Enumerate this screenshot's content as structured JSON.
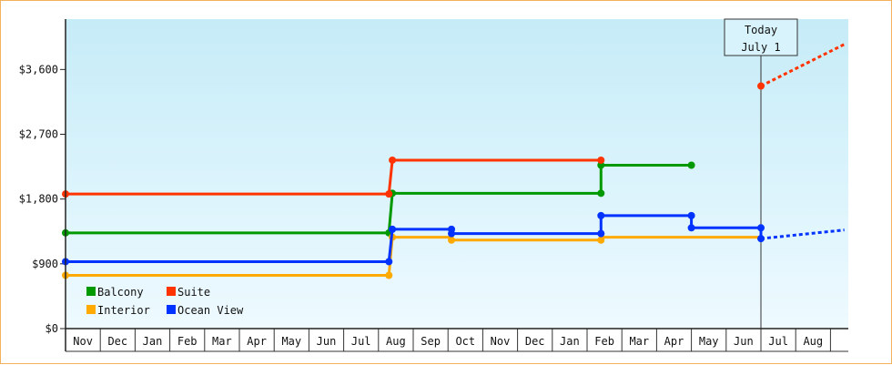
{
  "chart_data": {
    "type": "line",
    "title": "",
    "xlabel": "",
    "ylabel": "",
    "ylim": [
      0,
      4300
    ],
    "yticks": [
      0,
      900,
      1800,
      2700,
      3600
    ],
    "ytick_labels": [
      "$0",
      "$900",
      "$1,800",
      "$2,700",
      "$3,600"
    ],
    "month_labels": [
      "Nov",
      "Dec",
      "Jan",
      "Feb",
      "Mar",
      "Apr",
      "May",
      "Jun",
      "Jul",
      "Aug",
      "Sep",
      "Oct",
      "Nov",
      "Dec",
      "Jan",
      "Feb",
      "Mar",
      "Apr",
      "May",
      "Jun",
      "Jul",
      "Aug"
    ],
    "x_unit": "month index (0 = first Nov)",
    "grid": false,
    "background": "light blue gradient",
    "legend_position": "bottom-left",
    "today_marker": {
      "x": 20.0,
      "label_line1": "Today",
      "label_line2": "July 1"
    },
    "series": [
      {
        "name": "Balcony",
        "color": "#009900",
        "points": [
          [
            0,
            1330
          ],
          [
            9.3,
            1330
          ],
          [
            9.4,
            1880
          ],
          [
            15.4,
            1880
          ],
          [
            15.4,
            2270
          ],
          [
            18.0,
            2270
          ]
        ],
        "markers": [
          [
            0,
            1330
          ],
          [
            9.3,
            1330
          ],
          [
            9.4,
            1880
          ],
          [
            15.4,
            1880
          ],
          [
            15.4,
            2270
          ],
          [
            18.0,
            2270
          ]
        ],
        "forecast": []
      },
      {
        "name": "Suite",
        "color": "#ff3300",
        "points": [
          [
            0,
            1870
          ],
          [
            9.3,
            1870
          ],
          [
            9.4,
            2340
          ],
          [
            15.4,
            2340
          ]
        ],
        "markers": [
          [
            0,
            1870
          ],
          [
            9.3,
            1870
          ],
          [
            9.4,
            2340
          ],
          [
            15.4,
            2340
          ]
        ],
        "forecast_markers": [
          [
            20.0,
            3370
          ]
        ],
        "forecast": [
          [
            20.0,
            3370
          ],
          [
            22.4,
            3950
          ]
        ]
      },
      {
        "name": "Interior",
        "color": "#ffaa00",
        "points": [
          [
            0,
            740
          ],
          [
            9.3,
            740
          ],
          [
            9.4,
            1270
          ],
          [
            11.1,
            1270
          ],
          [
            11.1,
            1230
          ],
          [
            15.4,
            1230
          ],
          [
            15.4,
            1270
          ],
          [
            20.0,
            1270
          ]
        ],
        "markers": [
          [
            0,
            740
          ],
          [
            9.3,
            740
          ],
          [
            9.4,
            1270
          ],
          [
            11.1,
            1230
          ],
          [
            15.4,
            1230
          ]
        ],
        "forecast": []
      },
      {
        "name": "Ocean View",
        "color": "#0033ff",
        "points": [
          [
            0,
            930
          ],
          [
            9.3,
            930
          ],
          [
            9.4,
            1380
          ],
          [
            11.1,
            1380
          ],
          [
            11.1,
            1320
          ],
          [
            15.4,
            1320
          ],
          [
            15.4,
            1570
          ],
          [
            18.0,
            1570
          ],
          [
            18.0,
            1400
          ],
          [
            20.0,
            1400
          ],
          [
            20.0,
            1250
          ]
        ],
        "markers": [
          [
            0,
            930
          ],
          [
            9.3,
            930
          ],
          [
            9.4,
            1380
          ],
          [
            11.1,
            1380
          ],
          [
            11.1,
            1320
          ],
          [
            15.4,
            1320
          ],
          [
            15.4,
            1570
          ],
          [
            18.0,
            1570
          ],
          [
            18.0,
            1400
          ],
          [
            20.0,
            1400
          ],
          [
            20.0,
            1250
          ]
        ],
        "forecast": [
          [
            20.0,
            1250
          ],
          [
            22.4,
            1370
          ]
        ]
      }
    ]
  }
}
